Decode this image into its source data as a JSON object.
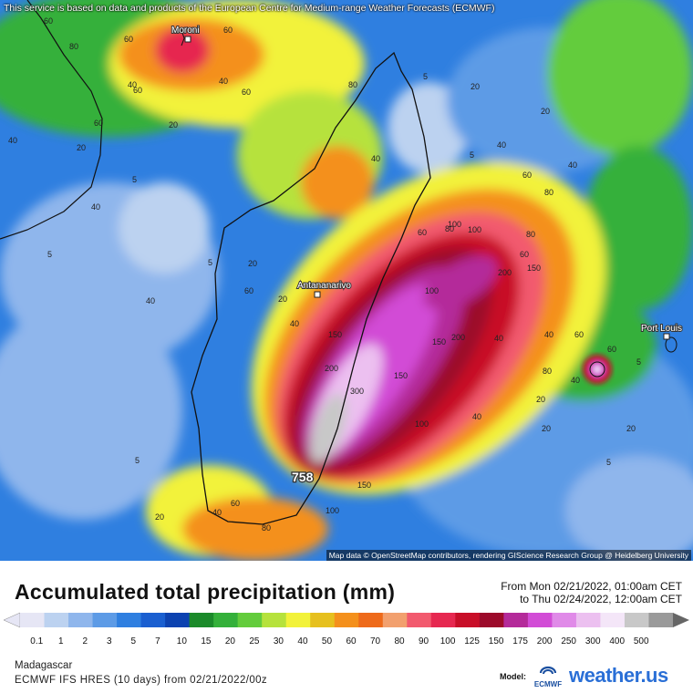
{
  "disclaimer": "This service is based on data and products of the European Centre for Medium-range Weather Forecasts (ECMWF)",
  "attribution": "Map data © OpenStreetMap contributors, rendering GIScience Research Group @ Heidelberg University",
  "cities": {
    "moroni": "Moroni",
    "antananarivo": "Antananarivo",
    "port_louis": "Port Louis"
  },
  "max_value": "758",
  "contour_labels": [
    "60",
    "80",
    "60",
    "60",
    "40",
    "20",
    "60",
    "60",
    "40",
    "20",
    "40",
    "60",
    "80",
    "5",
    "20",
    "40",
    "5",
    "5",
    "40",
    "40",
    "5",
    "20",
    "20",
    "60",
    "40",
    "100",
    "80",
    "60",
    "40",
    "5",
    "20",
    "40",
    "150",
    "200",
    "150",
    "100",
    "80",
    "60",
    "40",
    "300",
    "200",
    "150",
    "100",
    "60",
    "40",
    "20",
    "150",
    "100",
    "80",
    "60",
    "40",
    "20",
    "5",
    "80",
    "60",
    "40",
    "20",
    "5",
    "200",
    "150",
    "100",
    "80",
    "60",
    "40",
    "20",
    "5"
  ],
  "title": "Accumulated total precipitation (mm)",
  "period": {
    "from": "From Mon 02/21/2022, 01:00am CET",
    "to": "to Thu 02/24/2022, 12:00am CET"
  },
  "legend": {
    "ticks": [
      "0.1",
      "1",
      "2",
      "3",
      "5",
      "7",
      "10",
      "15",
      "20",
      "25",
      "30",
      "40",
      "50",
      "60",
      "70",
      "80",
      "90",
      "100",
      "125",
      "150",
      "175",
      "200",
      "250",
      "300",
      "400",
      "500"
    ],
    "colors": [
      "#e6e6f5",
      "#bcd2f0",
      "#8fb6ec",
      "#5d9be6",
      "#2f7fe0",
      "#1a5fd0",
      "#0c42b0",
      "#1b8a2a",
      "#34b03a",
      "#63cc3c",
      "#b6e23c",
      "#f2f23a",
      "#e6c01e",
      "#f4901c",
      "#ee6a1a",
      "#f2a06e",
      "#f25a6e",
      "#e62850",
      "#c80e28",
      "#9c0a2a",
      "#b42a9a",
      "#d24cd6",
      "#e08ae8",
      "#ecc0f0",
      "#f4e6f8",
      "#c8c8c8",
      "#9a9a9a"
    ],
    "unit": "mm"
  },
  "region": "Madagascar",
  "run": "ECMWF IFS HRES (10 days) from 02/21/2022/00z",
  "model_label": "Model:",
  "ecmwf_logo_text": "ECMWF",
  "brand": {
    "name": "weather",
    "tld": ".us"
  }
}
